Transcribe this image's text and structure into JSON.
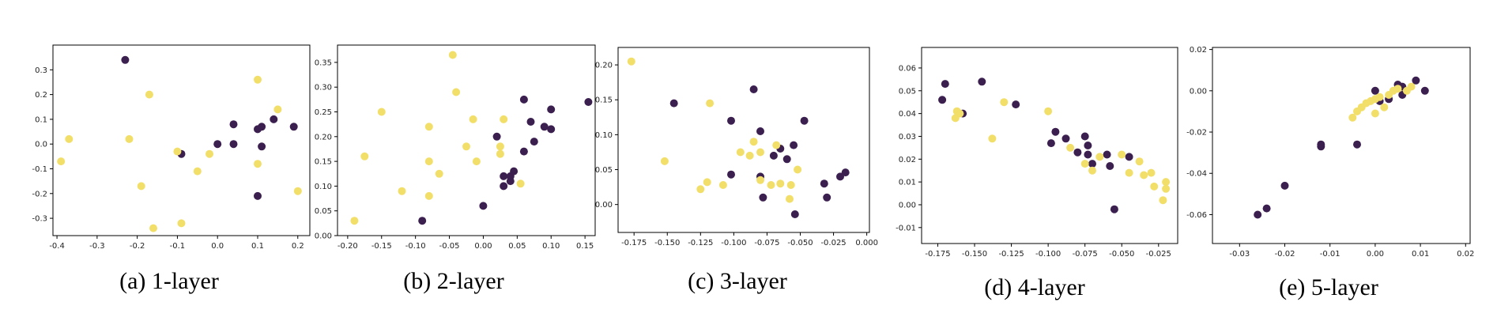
{
  "colors": {
    "class_a": "#3b1f4f",
    "class_b": "#f2df6a",
    "frame": "#000000"
  },
  "chart_data": [
    {
      "type": "scatter",
      "caption": "(a) 1-layer",
      "xlim": [
        -0.41,
        0.23
      ],
      "ylim": [
        -0.37,
        0.4
      ],
      "xticks": [
        -0.4,
        -0.3,
        -0.2,
        -0.1,
        0.0,
        0.1,
        0.2
      ],
      "xtick_labels": [
        "-0.4",
        "-0.3",
        "-0.2",
        "-0.1",
        "0.0",
        "0.1",
        "0.2"
      ],
      "yticks": [
        -0.3,
        -0.2,
        -0.1,
        0.0,
        0.1,
        0.2,
        0.3
      ],
      "ytick_labels": [
        "-0.3",
        "-0.2",
        "-0.1",
        "0.0",
        "0.1",
        "0.2",
        "0.3"
      ],
      "series": [
        {
          "color": "class_a",
          "points": [
            [
              -0.23,
              0.34
            ],
            [
              -0.09,
              -0.04
            ],
            [
              0.0,
              0.0
            ],
            [
              0.04,
              0.08
            ],
            [
              0.04,
              0.0
            ],
            [
              0.1,
              0.06
            ],
            [
              0.11,
              0.07
            ],
            [
              0.11,
              -0.01
            ],
            [
              0.14,
              0.1
            ],
            [
              0.19,
              0.07
            ],
            [
              0.1,
              -0.21
            ]
          ]
        },
        {
          "color": "class_b",
          "points": [
            [
              -0.39,
              -0.07
            ],
            [
              -0.37,
              0.02
            ],
            [
              -0.22,
              0.02
            ],
            [
              -0.19,
              -0.17
            ],
            [
              -0.17,
              0.2
            ],
            [
              -0.16,
              -0.34
            ],
            [
              -0.1,
              -0.03
            ],
            [
              -0.09,
              -0.32
            ],
            [
              -0.05,
              -0.11
            ],
            [
              -0.02,
              -0.04
            ],
            [
              0.1,
              0.26
            ],
            [
              0.1,
              -0.08
            ],
            [
              0.15,
              0.14
            ],
            [
              0.2,
              -0.19
            ]
          ]
        }
      ]
    },
    {
      "type": "scatter",
      "caption": "(b) 2-layer",
      "xlim": [
        -0.215,
        0.165
      ],
      "ylim": [
        0.0,
        0.385
      ],
      "xticks": [
        -0.2,
        -0.15,
        -0.1,
        -0.05,
        0.0,
        0.05,
        0.1,
        0.15
      ],
      "xtick_labels": [
        "-0.20",
        "-0.15",
        "-0.10",
        "-0.05",
        "0.00",
        "0.05",
        "0.10",
        "0.15"
      ],
      "yticks": [
        0.0,
        0.05,
        0.1,
        0.15,
        0.2,
        0.25,
        0.3,
        0.35
      ],
      "ytick_labels": [
        "0.00",
        "0.05",
        "0.10",
        "0.15",
        "0.20",
        "0.25",
        "0.30",
        "0.35"
      ],
      "series": [
        {
          "color": "class_a",
          "points": [
            [
              -0.09,
              0.03
            ],
            [
              0.0,
              0.06
            ],
            [
              0.02,
              0.2
            ],
            [
              0.03,
              0.1
            ],
            [
              0.03,
              0.12
            ],
            [
              0.04,
              0.11
            ],
            [
              0.04,
              0.12
            ],
            [
              0.045,
              0.13
            ],
            [
              0.06,
              0.17
            ],
            [
              0.06,
              0.275
            ],
            [
              0.07,
              0.23
            ],
            [
              0.075,
              0.19
            ],
            [
              0.09,
              0.22
            ],
            [
              0.1,
              0.215
            ],
            [
              0.1,
              0.255
            ],
            [
              0.155,
              0.27
            ]
          ]
        },
        {
          "color": "class_b",
          "points": [
            [
              -0.19,
              0.03
            ],
            [
              -0.175,
              0.16
            ],
            [
              -0.15,
              0.25
            ],
            [
              -0.12,
              0.09
            ],
            [
              -0.08,
              0.22
            ],
            [
              -0.08,
              0.15
            ],
            [
              -0.08,
              0.08
            ],
            [
              -0.065,
              0.125
            ],
            [
              -0.045,
              0.365
            ],
            [
              -0.04,
              0.29
            ],
            [
              -0.025,
              0.18
            ],
            [
              -0.015,
              0.235
            ],
            [
              -0.01,
              0.15
            ],
            [
              0.025,
              0.18
            ],
            [
              0.025,
              0.165
            ],
            [
              0.03,
              0.235
            ],
            [
              0.055,
              0.105
            ]
          ]
        }
      ]
    },
    {
      "type": "scatter",
      "caption": "(c) 3-layer",
      "xlim": [
        -0.187,
        0.002
      ],
      "ylim": [
        -0.04,
        0.225
      ],
      "xticks": [
        -0.175,
        -0.15,
        -0.125,
        -0.1,
        -0.075,
        -0.05,
        -0.025,
        0.0
      ],
      "xtick_labels": [
        "-0.175",
        "-0.150",
        "-0.125",
        "-0.100",
        "-0.075",
        "-0.050",
        "-0.025",
        "0.000"
      ],
      "yticks": [
        0.0,
        0.05,
        0.1,
        0.15,
        0.2
      ],
      "ytick_labels": [
        "0.00",
        "0.05",
        "0.10",
        "0.15",
        "0.20"
      ],
      "series": [
        {
          "color": "class_a",
          "points": [
            [
              -0.145,
              0.145
            ],
            [
              -0.102,
              0.12
            ],
            [
              -0.102,
              0.043
            ],
            [
              -0.085,
              0.165
            ],
            [
              -0.08,
              0.105
            ],
            [
              -0.08,
              0.04
            ],
            [
              -0.078,
              0.01
            ],
            [
              -0.07,
              0.07
            ],
            [
              -0.065,
              0.08
            ],
            [
              -0.06,
              0.065
            ],
            [
              -0.055,
              0.085
            ],
            [
              -0.054,
              -0.014
            ],
            [
              -0.047,
              0.12
            ],
            [
              -0.032,
              0.03
            ],
            [
              -0.03,
              0.01
            ],
            [
              -0.02,
              0.04
            ],
            [
              -0.016,
              0.046
            ]
          ]
        },
        {
          "color": "class_b",
          "points": [
            [
              -0.177,
              0.205
            ],
            [
              -0.152,
              0.062
            ],
            [
              -0.125,
              0.022
            ],
            [
              -0.12,
              0.032
            ],
            [
              -0.118,
              0.145
            ],
            [
              -0.108,
              0.028
            ],
            [
              -0.095,
              0.075
            ],
            [
              -0.088,
              0.07
            ],
            [
              -0.085,
              0.09
            ],
            [
              -0.08,
              0.075
            ],
            [
              -0.08,
              0.035
            ],
            [
              -0.072,
              0.028
            ],
            [
              -0.068,
              0.085
            ],
            [
              -0.065,
              0.03
            ],
            [
              -0.058,
              0.008
            ],
            [
              -0.057,
              0.028
            ],
            [
              -0.052,
              0.05
            ]
          ]
        }
      ]
    },
    {
      "type": "scatter",
      "caption": "(d) 4-layer",
      "xlim": [
        -0.186,
        -0.012
      ],
      "ylim": [
        -0.017,
        0.069
      ],
      "xticks": [
        -0.175,
        -0.15,
        -0.125,
        -0.1,
        -0.075,
        -0.05,
        -0.025
      ],
      "xtick_labels": [
        "-0.175",
        "-0.150",
        "-0.125",
        "-0.100",
        "-0.075",
        "-0.050",
        "-0.025"
      ],
      "yticks": [
        -0.01,
        0.0,
        0.01,
        0.02,
        0.03,
        0.04,
        0.05,
        0.06
      ],
      "ytick_labels": [
        "-0.01",
        "0.00",
        "0.01",
        "0.02",
        "0.03",
        "0.04",
        "0.05",
        "0.06"
      ],
      "series": [
        {
          "color": "class_a",
          "points": [
            [
              -0.172,
              0.046
            ],
            [
              -0.17,
              0.053
            ],
            [
              -0.158,
              0.04
            ],
            [
              -0.145,
              0.054
            ],
            [
              -0.122,
              0.044
            ],
            [
              -0.098,
              0.027
            ],
            [
              -0.095,
              0.032
            ],
            [
              -0.088,
              0.029
            ],
            [
              -0.08,
              0.023
            ],
            [
              -0.075,
              0.03
            ],
            [
              -0.073,
              0.026
            ],
            [
              -0.073,
              0.022
            ],
            [
              -0.07,
              0.018
            ],
            [
              -0.06,
              0.022
            ],
            [
              -0.058,
              0.017
            ],
            [
              -0.055,
              -0.002
            ],
            [
              -0.045,
              0.021
            ]
          ]
        },
        {
          "color": "class_b",
          "points": [
            [
              -0.163,
              0.038
            ],
            [
              -0.162,
              0.041
            ],
            [
              -0.16,
              0.04
            ],
            [
              -0.138,
              0.029
            ],
            [
              -0.13,
              0.045
            ],
            [
              -0.1,
              0.041
            ],
            [
              -0.085,
              0.025
            ],
            [
              -0.075,
              0.018
            ],
            [
              -0.07,
              0.015
            ],
            [
              -0.065,
              0.021
            ],
            [
              -0.05,
              0.022
            ],
            [
              -0.045,
              0.014
            ],
            [
              -0.038,
              0.019
            ],
            [
              -0.035,
              0.013
            ],
            [
              -0.03,
              0.014
            ],
            [
              -0.028,
              0.008
            ],
            [
              -0.022,
              0.002
            ],
            [
              -0.02,
              0.01
            ],
            [
              -0.02,
              0.007
            ]
          ]
        }
      ]
    },
    {
      "type": "scatter",
      "caption": "(e) 5-layer",
      "xlim": [
        -0.036,
        0.021
      ],
      "ylim": [
        -0.074,
        0.021
      ],
      "xticks": [
        -0.03,
        -0.02,
        -0.01,
        0.0,
        0.01,
        0.02
      ],
      "xtick_labels": [
        "-0.03",
        "-0.02",
        "-0.01",
        "0.00",
        "0.01",
        "0.02"
      ],
      "yticks": [
        -0.06,
        -0.04,
        -0.02,
        0.0,
        0.02
      ],
      "ytick_labels": [
        "-0.06",
        "-0.04",
        "-0.02",
        "0.00",
        "0.02"
      ],
      "series": [
        {
          "color": "class_a",
          "points": [
            [
              -0.026,
              -0.06
            ],
            [
              -0.024,
              -0.057
            ],
            [
              -0.02,
              -0.046
            ],
            [
              -0.012,
              -0.027
            ],
            [
              -0.012,
              -0.026
            ],
            [
              -0.004,
              -0.026
            ],
            [
              0.0,
              0.0
            ],
            [
              0.001,
              -0.005
            ],
            [
              0.003,
              -0.004
            ],
            [
              0.005,
              0.003
            ],
            [
              0.006,
              0.002
            ],
            [
              0.006,
              -0.002
            ],
            [
              0.009,
              0.005
            ],
            [
              0.011,
              0.0
            ]
          ]
        },
        {
          "color": "class_b",
          "points": [
            [
              -0.005,
              -0.013
            ],
            [
              -0.004,
              -0.01
            ],
            [
              -0.003,
              -0.008
            ],
            [
              -0.002,
              -0.006
            ],
            [
              -0.001,
              -0.005
            ],
            [
              0.0,
              -0.004
            ],
            [
              0.0,
              -0.011
            ],
            [
              0.001,
              -0.003
            ],
            [
              0.002,
              -0.008
            ],
            [
              0.003,
              -0.002
            ],
            [
              0.004,
              0.0
            ],
            [
              0.005,
              0.001
            ],
            [
              0.007,
              0.0
            ],
            [
              0.008,
              0.002
            ]
          ]
        }
      ]
    }
  ]
}
